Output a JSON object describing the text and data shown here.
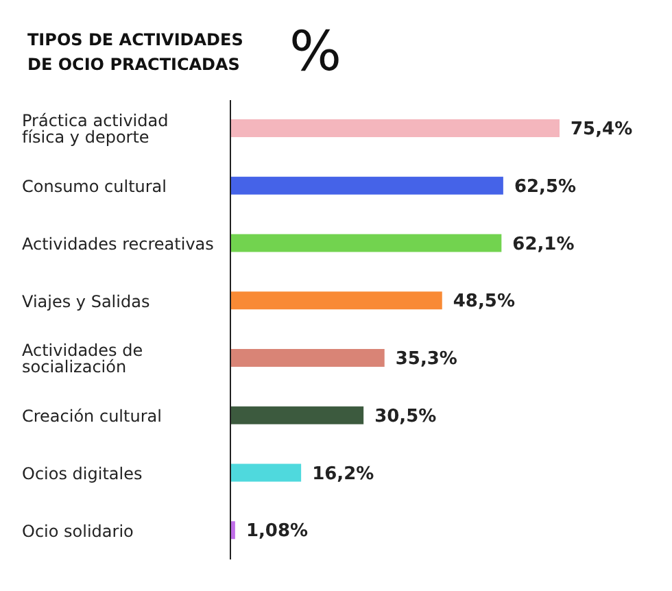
{
  "chart_data": {
    "type": "bar",
    "orientation": "horizontal",
    "title": "TIPOS DE ACTIVIDADES DE OCIO PRACTICADAS",
    "subtitle": "%",
    "categories": [
      "Práctica actividad física y deporte",
      "Consumo cultural",
      "Actividades recreativas",
      "Viajes y Salidas",
      "Actividades de socialización",
      "Creación cultural",
      "Ocios digitales",
      "Ocio solidario"
    ],
    "values": [
      75.4,
      62.5,
      62.1,
      48.5,
      35.3,
      30.5,
      16.2,
      1.08
    ],
    "value_labels": [
      "75,4%",
      "62,5%",
      "62,1%",
      "48,5%",
      "35,3%",
      "30,5%",
      "16,2%",
      "1,08%"
    ],
    "colors": [
      "#f4b6bd",
      "#4563e8",
      "#72d34f",
      "#f98a35",
      "#d98476",
      "#3c5a3e",
      "#4fd9dd",
      "#c06ee8"
    ],
    "grid": false,
    "legend": false
  }
}
